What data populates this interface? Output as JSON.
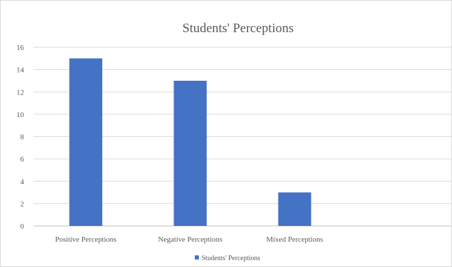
{
  "chart_data": {
    "type": "bar",
    "title": "Students' Perceptions",
    "xlabel": "",
    "ylabel": "",
    "categories": [
      "Positive Perceptions",
      "Negative Perceptions",
      "Mixed Perceptions",
      ""
    ],
    "series": [
      {
        "name": "Students' Perceptions",
        "values": [
          15,
          13,
          3,
          null
        ]
      }
    ],
    "ylim": [
      0,
      16
    ],
    "yticks": [
      0,
      2,
      4,
      6,
      8,
      10,
      12,
      14,
      16
    ],
    "grid": true,
    "legend": "bottom",
    "colors": {
      "bar": "#4472c4",
      "grid": "#d9d9d9",
      "axis": "#bfbfbf",
      "text": "#595959"
    }
  }
}
